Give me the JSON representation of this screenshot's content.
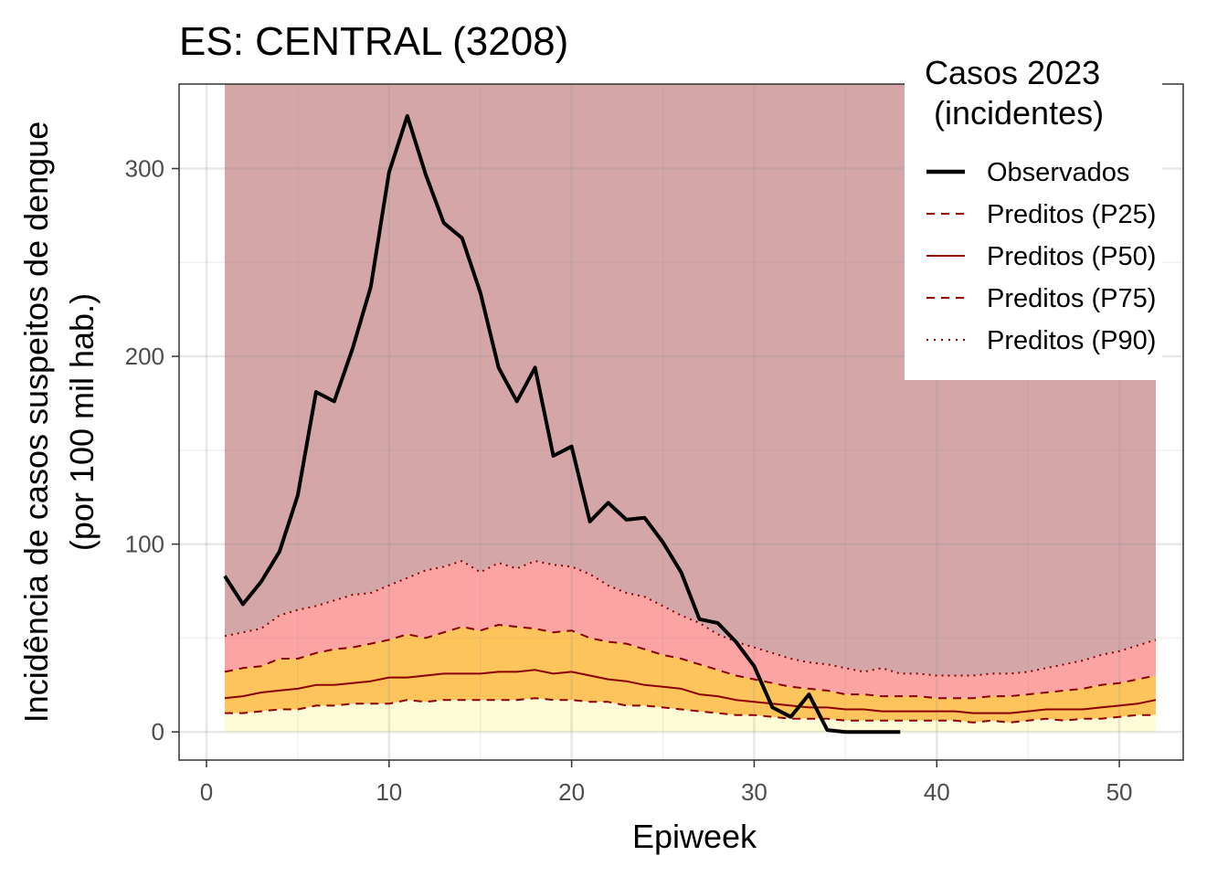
{
  "chart_data": {
    "type": "line",
    "title": "ES: CENTRAL (3208)",
    "xlabel": "Epiweek",
    "ylabel_lines": [
      "Incidência de casos suspeitos de dengue",
      "(por 100 mil hab.)"
    ],
    "xlim": [
      -1.5,
      53.5
    ],
    "ylim": [
      -15,
      345
    ],
    "xticks": [
      0,
      10,
      20,
      30,
      40,
      50
    ],
    "yticks": [
      0,
      100,
      200,
      300
    ],
    "grid": true,
    "background_band_top": 345,
    "legend": {
      "position": "top-right",
      "title_lines": [
        "Casos 2023",
        " (incidentes)"
      ],
      "entries": [
        {
          "label": "Observados",
          "style": "solid-thick",
          "color": "#000000"
        },
        {
          "label": "Preditos (P25)",
          "style": "dashed",
          "color": "#8b0000"
        },
        {
          "label": "Preditos (P50)",
          "style": "solid",
          "color": "#8b0000"
        },
        {
          "label": "Preditos (P75)",
          "style": "dashed",
          "color": "#8b0000"
        },
        {
          "label": "Preditos (P90)",
          "style": "dotted",
          "color": "#8b0000"
        }
      ]
    },
    "colors": {
      "top_band": "#d5a6a8",
      "p75_p90_band": "#fca4a4",
      "p25_p75_band": "#fdc45b",
      "below_p25_band": "#fdfcd6",
      "predicted_lines": "#8b0000",
      "observed_line": "#000000"
    },
    "epiweeks": [
      1,
      2,
      3,
      4,
      5,
      6,
      7,
      8,
      9,
      10,
      11,
      12,
      13,
      14,
      15,
      16,
      17,
      18,
      19,
      20,
      21,
      22,
      23,
      24,
      25,
      26,
      27,
      28,
      29,
      30,
      31,
      32,
      33,
      34,
      35,
      36,
      37,
      38,
      39,
      40,
      41,
      42,
      43,
      44,
      45,
      46,
      47,
      48,
      49,
      50,
      51,
      52
    ],
    "series": [
      {
        "name": "Preditos (P25)",
        "values": [
          10,
          10,
          11,
          12,
          12,
          14,
          14,
          15,
          15,
          15,
          17,
          16,
          17,
          17,
          17,
          17,
          17,
          18,
          17,
          17,
          16,
          16,
          14,
          14,
          13,
          12,
          11,
          10,
          9,
          9,
          8,
          7,
          7,
          7,
          6,
          6,
          6,
          6,
          6,
          6,
          6,
          5,
          6,
          5,
          6,
          7,
          6,
          7,
          7,
          8,
          9,
          9
        ]
      },
      {
        "name": "Preditos (P50)",
        "values": [
          18,
          19,
          21,
          22,
          23,
          25,
          25,
          26,
          27,
          29,
          29,
          30,
          31,
          31,
          31,
          32,
          32,
          33,
          31,
          32,
          30,
          28,
          27,
          25,
          24,
          23,
          20,
          19,
          17,
          16,
          15,
          14,
          13,
          13,
          12,
          12,
          11,
          11,
          11,
          11,
          11,
          10,
          10,
          10,
          11,
          12,
          12,
          12,
          13,
          14,
          15,
          17
        ]
      },
      {
        "name": "Preditos (P75)",
        "values": [
          32,
          34,
          35,
          39,
          39,
          42,
          44,
          45,
          47,
          49,
          52,
          50,
          53,
          56,
          54,
          57,
          56,
          55,
          53,
          54,
          50,
          48,
          47,
          44,
          41,
          39,
          36,
          33,
          30,
          28,
          26,
          24,
          23,
          22,
          20,
          20,
          19,
          19,
          19,
          18,
          18,
          18,
          19,
          19,
          20,
          21,
          22,
          23,
          25,
          26,
          28,
          30
        ]
      },
      {
        "name": "Preditos (P90)",
        "values": [
          51,
          53,
          55,
          62,
          65,
          67,
          70,
          73,
          74,
          78,
          82,
          86,
          88,
          91,
          85,
          90,
          87,
          91,
          89,
          88,
          84,
          78,
          74,
          72,
          67,
          62,
          58,
          52,
          48,
          45,
          42,
          39,
          37,
          36,
          34,
          32,
          34,
          31,
          31,
          30,
          30,
          30,
          31,
          31,
          32,
          34,
          36,
          38,
          41,
          43,
          46,
          49
        ]
      },
      {
        "name": "Observados",
        "x": [
          1,
          2,
          3,
          4,
          5,
          6,
          7,
          8,
          9,
          10,
          11,
          12,
          13,
          14,
          15,
          16,
          17,
          18,
          19,
          20,
          21,
          22,
          23,
          24,
          25,
          26,
          27,
          28,
          29,
          30,
          31,
          32,
          33,
          34,
          35,
          36,
          37,
          38
        ],
        "values": [
          83,
          68,
          80,
          96,
          126,
          181,
          176,
          204,
          237,
          298,
          328,
          297,
          271,
          263,
          234,
          194,
          176,
          194,
          147,
          152,
          112,
          122,
          113,
          114,
          101,
          85,
          60,
          58,
          48,
          35,
          13,
          8,
          20,
          1,
          0,
          0,
          0,
          0
        ]
      }
    ]
  }
}
